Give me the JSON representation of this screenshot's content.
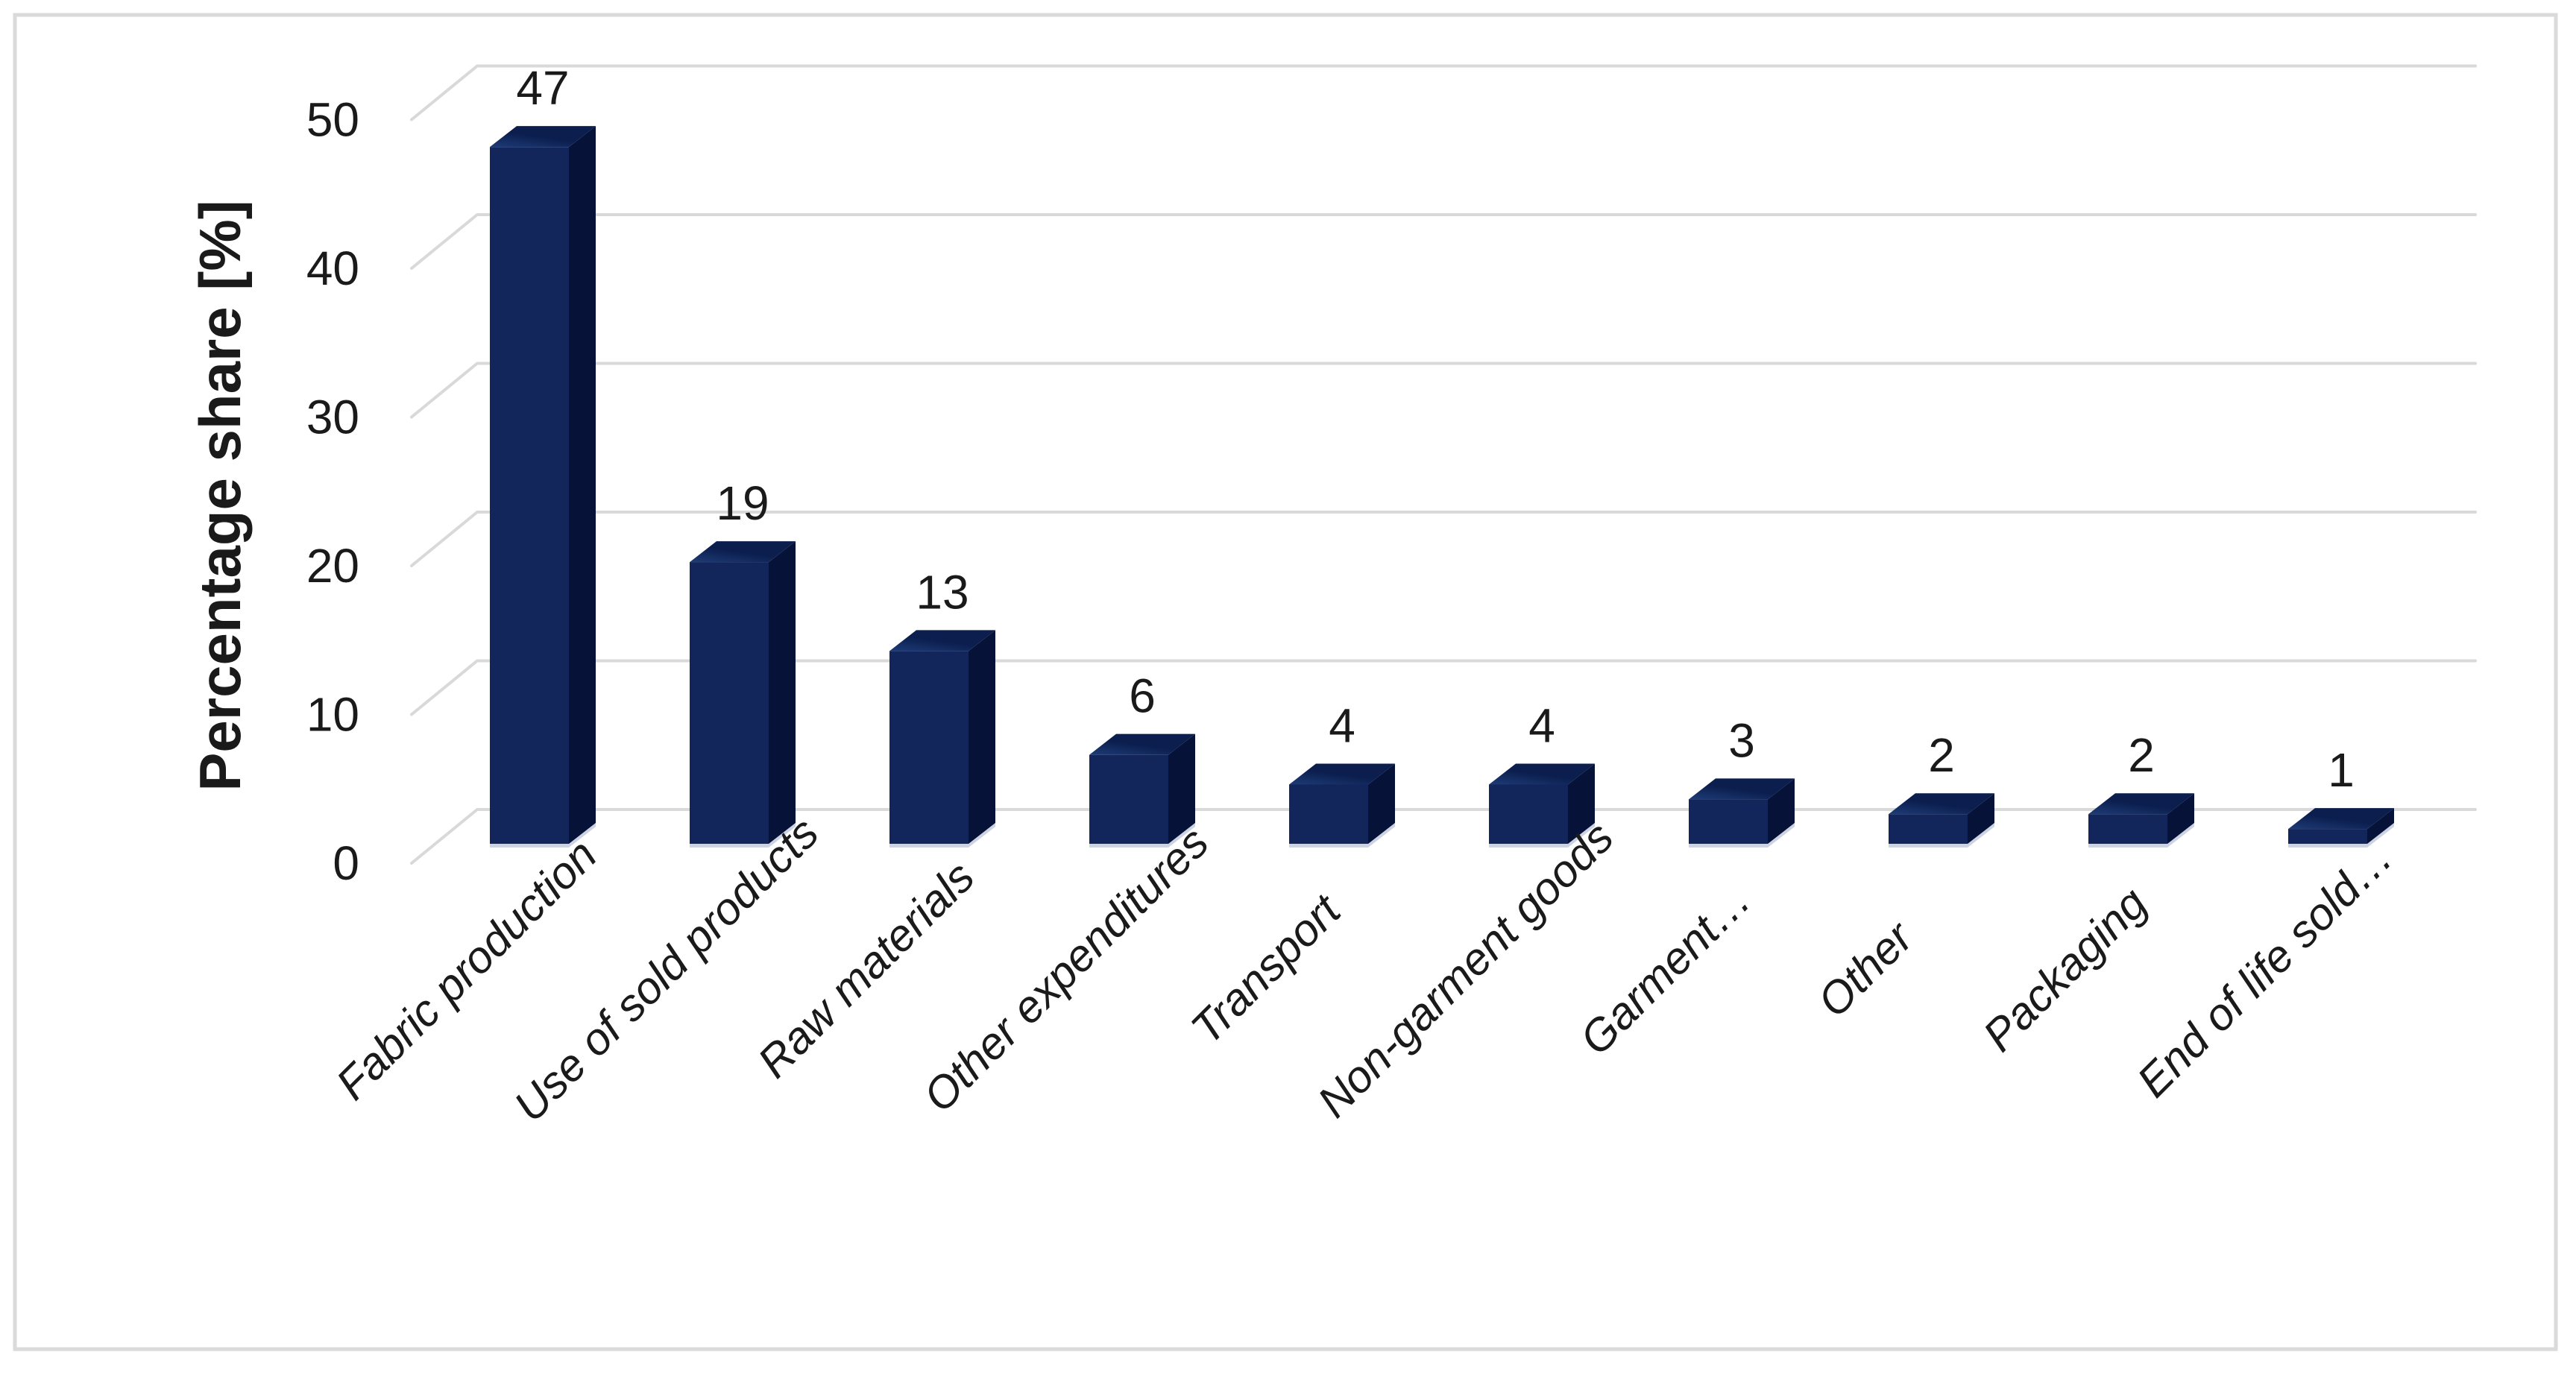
{
  "chart_data": {
    "type": "bar",
    "style": "3d-column",
    "title": "",
    "xlabel": "",
    "ylabel": "Percentage share [%]",
    "categories": [
      "Fabric production",
      "Use of sold products",
      "Raw materials",
      "Other expenditures",
      "Transport",
      "Non-garment goods",
      "Garment…",
      "Other",
      "Packaging",
      "End of life sold…"
    ],
    "values": [
      47,
      19,
      13,
      6,
      4,
      4,
      3,
      2,
      2,
      1
    ],
    "data_labels": [
      "47",
      "19",
      "13",
      "6",
      "4",
      "4",
      "3",
      "2",
      "2",
      "1"
    ],
    "yticks": [
      0,
      10,
      20,
      30,
      40,
      50
    ],
    "ytick_labels": [
      "0",
      "10",
      "20",
      "30",
      "40",
      "50"
    ],
    "ylim": [
      0,
      50
    ],
    "grid": "horizontal gridlines every 10, 3D back-wall style",
    "legend": "none",
    "colors": {
      "bar_front": "#12265c",
      "bar_side": "#061238",
      "bar_top_near": "#1e3c77",
      "bar_top_far": "#0b1e4e",
      "bar_bottom_sliver": "#ccd3e3",
      "gridline": "#d9d9d9",
      "text": "#1a1a1a",
      "figure_border": "#dadada",
      "background": "#ffffff"
    }
  }
}
